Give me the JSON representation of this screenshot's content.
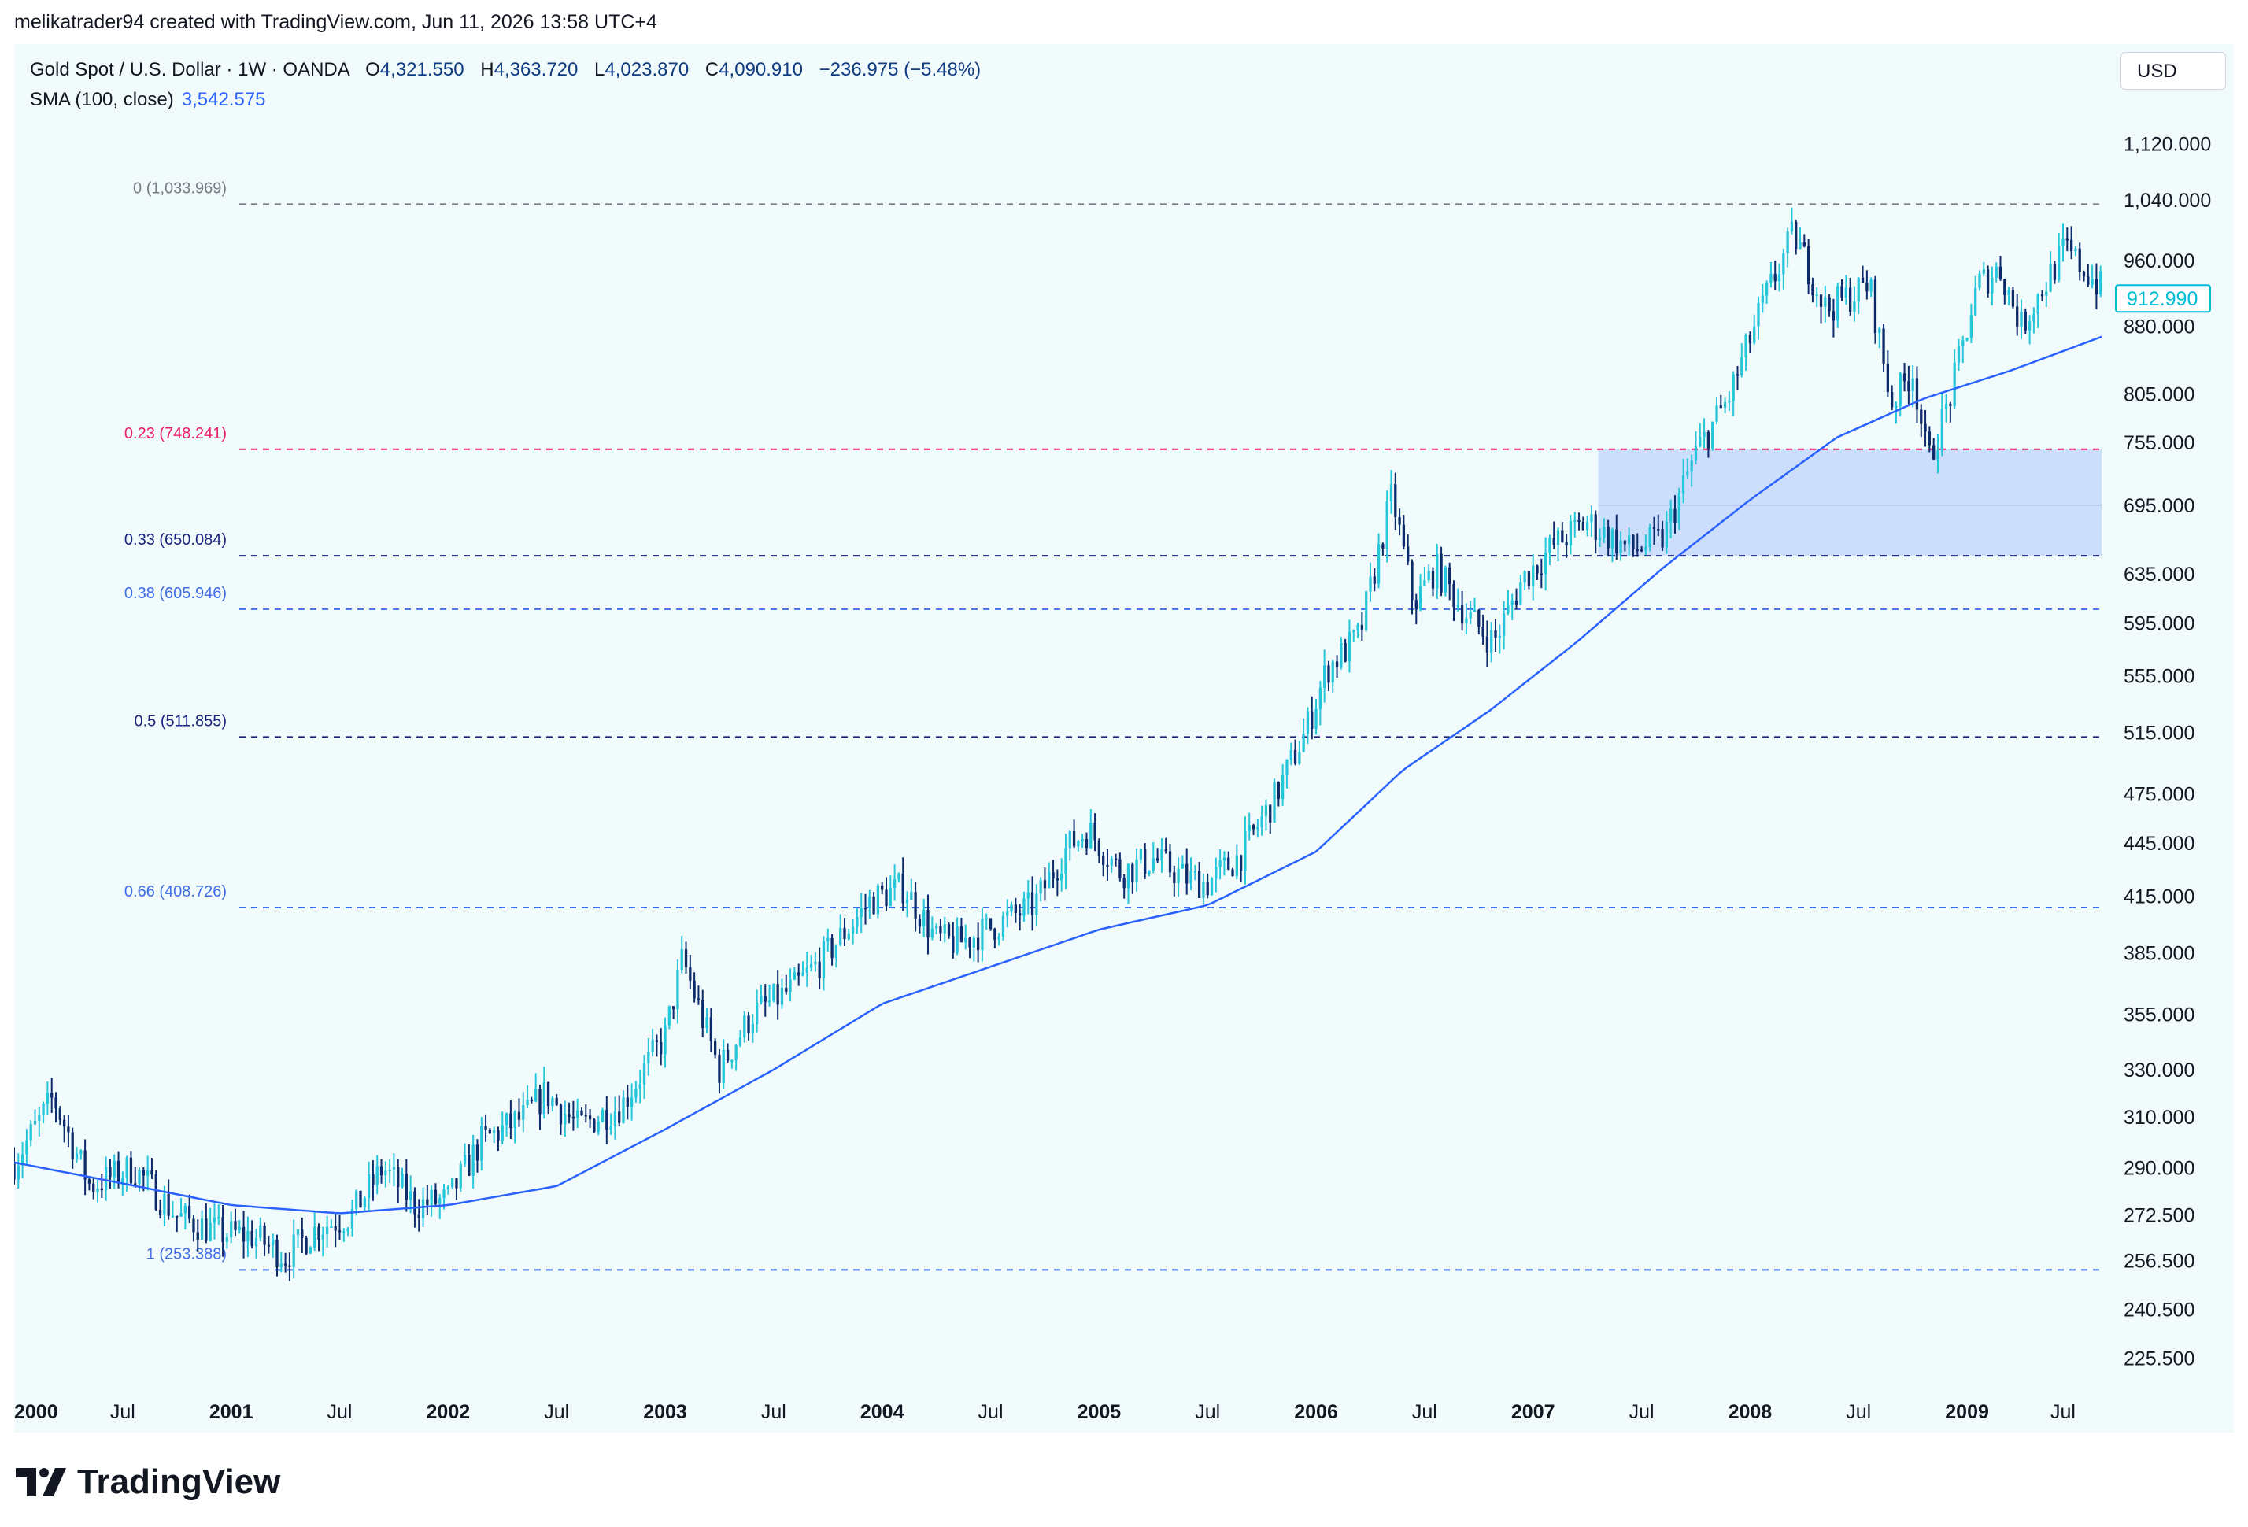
{
  "header": {
    "created_line": "melikatrader94 created with TradingView.com, Jun 11, 2026 13:58 UTC+4"
  },
  "legend": {
    "symbol": "Gold Spot / U.S. Dollar · 1W · OANDA",
    "open_label": "O",
    "open": "4,321.550",
    "high_label": "H",
    "high": "4,363.720",
    "low_label": "L",
    "low": "4,023.870",
    "close_label": "C",
    "close": "4,090.910",
    "change": "−236.975 (−5.48%)",
    "sma_label": "SMA (100, close)",
    "sma_value": "3,542.575"
  },
  "currency": "USD",
  "footer": {
    "brand": "TradingView"
  },
  "colors": {
    "up": "#26c6da",
    "down": "#0d2a6b",
    "sma": "#2962ff",
    "zone": "#c6d8fb",
    "fib_red": "#e91e63",
    "fib_navy": "#1a237e",
    "fib_blue": "#3f6ee8",
    "fib_gray": "#787b86",
    "price_box": "#00bcd4"
  },
  "chart_data": {
    "type": "candlestick",
    "y_scale": "log",
    "y_ticks": [
      "1,120.000",
      "1,040.000",
      "960.000",
      "880.000",
      "805.000",
      "755.000",
      "695.000",
      "635.000",
      "595.000",
      "555.000",
      "515.000",
      "475.000",
      "445.000",
      "415.000",
      "385.000",
      "355.000",
      "330.000",
      "310.000",
      "290.000",
      "272.500",
      "256.500",
      "240.500",
      "225.500"
    ],
    "x_ticks": [
      {
        "label": "2000",
        "bold": true
      },
      {
        "label": "Jul",
        "bold": false
      },
      {
        "label": "2001",
        "bold": true
      },
      {
        "label": "Jul",
        "bold": false
      },
      {
        "label": "2002",
        "bold": true
      },
      {
        "label": "Jul",
        "bold": false
      },
      {
        "label": "2003",
        "bold": true
      },
      {
        "label": "Jul",
        "bold": false
      },
      {
        "label": "2004",
        "bold": true
      },
      {
        "label": "Jul",
        "bold": false
      },
      {
        "label": "2005",
        "bold": true
      },
      {
        "label": "Jul",
        "bold": false
      },
      {
        "label": "2006",
        "bold": true
      },
      {
        "label": "Jul",
        "bold": false
      },
      {
        "label": "2007",
        "bold": true
      },
      {
        "label": "Jul",
        "bold": false
      },
      {
        "label": "2008",
        "bold": true
      },
      {
        "label": "Jul",
        "bold": false
      },
      {
        "label": "2009",
        "bold": true
      },
      {
        "label": "Jul",
        "bold": false
      }
    ],
    "x_range_years": [
      2000.0,
      2009.62
    ],
    "y_range": [
      214,
      1200
    ],
    "fib_levels": [
      {
        "label": "0 (1,033.969)",
        "value": 1033.969,
        "color": "#787b86"
      },
      {
        "label": "0.23 (748.241)",
        "value": 748.241,
        "color": "#e91e63"
      },
      {
        "label": "0.33 (650.084)",
        "value": 650.084,
        "color": "#1a237e"
      },
      {
        "label": "0.38 (605.946)",
        "value": 605.946,
        "color": "#3f6ee8"
      },
      {
        "label": "0.5 (511.855)",
        "value": 511.855,
        "color": "#1a237e"
      },
      {
        "label": "0.66 (408.726)",
        "value": 408.726,
        "color": "#3f6ee8"
      },
      {
        "label": "1 (253.388)",
        "value": 253.388,
        "color": "#3f6ee8"
      }
    ],
    "zone": {
      "x_start": 2007.3,
      "x_end": 2009.62,
      "y_low": 650.084,
      "y_high": 748.241
    },
    "last_price": "912.990",
    "last_price_value": 912.99,
    "price_anchors": [
      [
        2000.0,
        292
      ],
      [
        2000.18,
        318
      ],
      [
        2000.35,
        283
      ],
      [
        2000.55,
        290
      ],
      [
        2000.75,
        272
      ],
      [
        2000.95,
        266
      ],
      [
        2001.1,
        265
      ],
      [
        2001.25,
        258
      ],
      [
        2001.4,
        268
      ],
      [
        2001.55,
        272
      ],
      [
        2001.7,
        290
      ],
      [
        2001.85,
        276
      ],
      [
        2002.0,
        278
      ],
      [
        2002.15,
        300
      ],
      [
        2002.35,
        310
      ],
      [
        2002.45,
        320
      ],
      [
        2002.6,
        306
      ],
      [
        2002.8,
        315
      ],
      [
        2003.0,
        345
      ],
      [
        2003.08,
        382
      ],
      [
        2003.25,
        330
      ],
      [
        2003.4,
        355
      ],
      [
        2003.6,
        368
      ],
      [
        2003.75,
        385
      ],
      [
        2003.95,
        413
      ],
      [
        2004.1,
        420
      ],
      [
        2004.25,
        392
      ],
      [
        2004.35,
        390
      ],
      [
        2004.5,
        398
      ],
      [
        2004.7,
        410
      ],
      [
        2004.85,
        442
      ],
      [
        2004.95,
        453
      ],
      [
        2005.1,
        428
      ],
      [
        2005.25,
        436
      ],
      [
        2005.4,
        425
      ],
      [
        2005.5,
        422
      ],
      [
        2005.65,
        438
      ],
      [
        2005.8,
        470
      ],
      [
        2005.95,
        515
      ],
      [
        2006.05,
        560
      ],
      [
        2006.2,
        585
      ],
      [
        2006.35,
        705
      ],
      [
        2006.45,
        610
      ],
      [
        2006.55,
        640
      ],
      [
        2006.7,
        600
      ],
      [
        2006.82,
        580
      ],
      [
        2006.95,
        630
      ],
      [
        2007.1,
        660
      ],
      [
        2007.25,
        680
      ],
      [
        2007.45,
        655
      ],
      [
        2007.6,
        665
      ],
      [
        2007.75,
        745
      ],
      [
        2007.9,
        800
      ],
      [
        2008.05,
        900
      ],
      [
        2008.2,
        995
      ],
      [
        2008.35,
        900
      ],
      [
        2008.55,
        930
      ],
      [
        2008.65,
        795
      ],
      [
        2008.75,
        830
      ],
      [
        2008.82,
        735
      ],
      [
        2008.92,
        800
      ],
      [
        2009.05,
        930
      ],
      [
        2009.15,
        950
      ],
      [
        2009.25,
        880
      ],
      [
        2009.45,
        975
      ],
      [
        2009.62,
        925
      ]
    ],
    "sma_anchors": [
      [
        2000.0,
        292
      ],
      [
        2000.5,
        284
      ],
      [
        2001.0,
        276
      ],
      [
        2001.5,
        273
      ],
      [
        2002.0,
        276
      ],
      [
        2002.5,
        283
      ],
      [
        2003.0,
        305
      ],
      [
        2003.5,
        330
      ],
      [
        2004.0,
        360
      ],
      [
        2004.5,
        378
      ],
      [
        2005.0,
        397
      ],
      [
        2005.5,
        410
      ],
      [
        2006.0,
        440
      ],
      [
        2006.4,
        490
      ],
      [
        2006.8,
        530
      ],
      [
        2007.2,
        580
      ],
      [
        2007.6,
        640
      ],
      [
        2008.0,
        700
      ],
      [
        2008.4,
        760
      ],
      [
        2008.8,
        800
      ],
      [
        2009.2,
        830
      ],
      [
        2009.62,
        868
      ]
    ]
  }
}
